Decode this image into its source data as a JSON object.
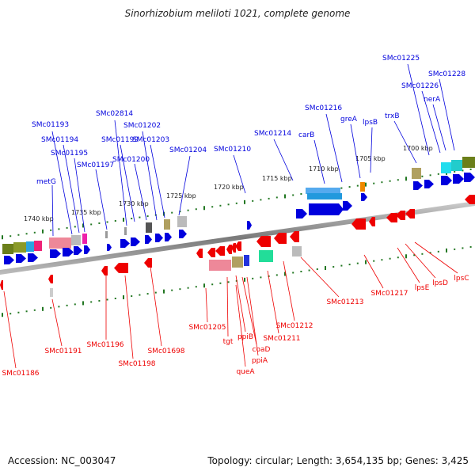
{
  "title": "Sinorhizobium meliloti 1021, complete genome",
  "footer": {
    "accession": "Accession: NC_003047",
    "stats": "Topology: circular; Length: 3,654,135 bp; Genes: 3,425"
  },
  "colors": {
    "plus_strand": "#0000dd",
    "minus_strand": "#ee0000",
    "backbone": "#888888",
    "tick": "#227722"
  },
  "scale_labels": [
    "1740 kbp",
    "1735 kbp",
    "1730 kbp",
    "1725 kbp",
    "1720 kbp",
    "1715 kbp",
    "1710 kbp",
    "1705 kbp",
    "1700 kbp"
  ],
  "top_genes": [
    "metG",
    "SMc01193",
    "SMc01194",
    "SMc01195",
    "SMc01197",
    "SMc02814",
    "SMc01199",
    "SMc01200",
    "SMc01202",
    "SMc01203",
    "SMc01204",
    "SMc01210",
    "SMc01214",
    "carB",
    "SMc01216",
    "greA",
    "lpsB",
    "trxB",
    "SMc01225",
    "SMc01226",
    "nerA",
    "SMc01228"
  ],
  "bottom_genes": [
    "SMc01186",
    "SMc01191",
    "SMc01196",
    "SMc01198",
    "SMc01698",
    "SMc01205",
    "tgt",
    "ppiB",
    "queA",
    "coaD",
    "ppiA",
    "SMc01211",
    "SMc01212",
    "SMc01213",
    "SMc01217",
    "lpsE",
    "lpsD",
    "lpsC"
  ]
}
